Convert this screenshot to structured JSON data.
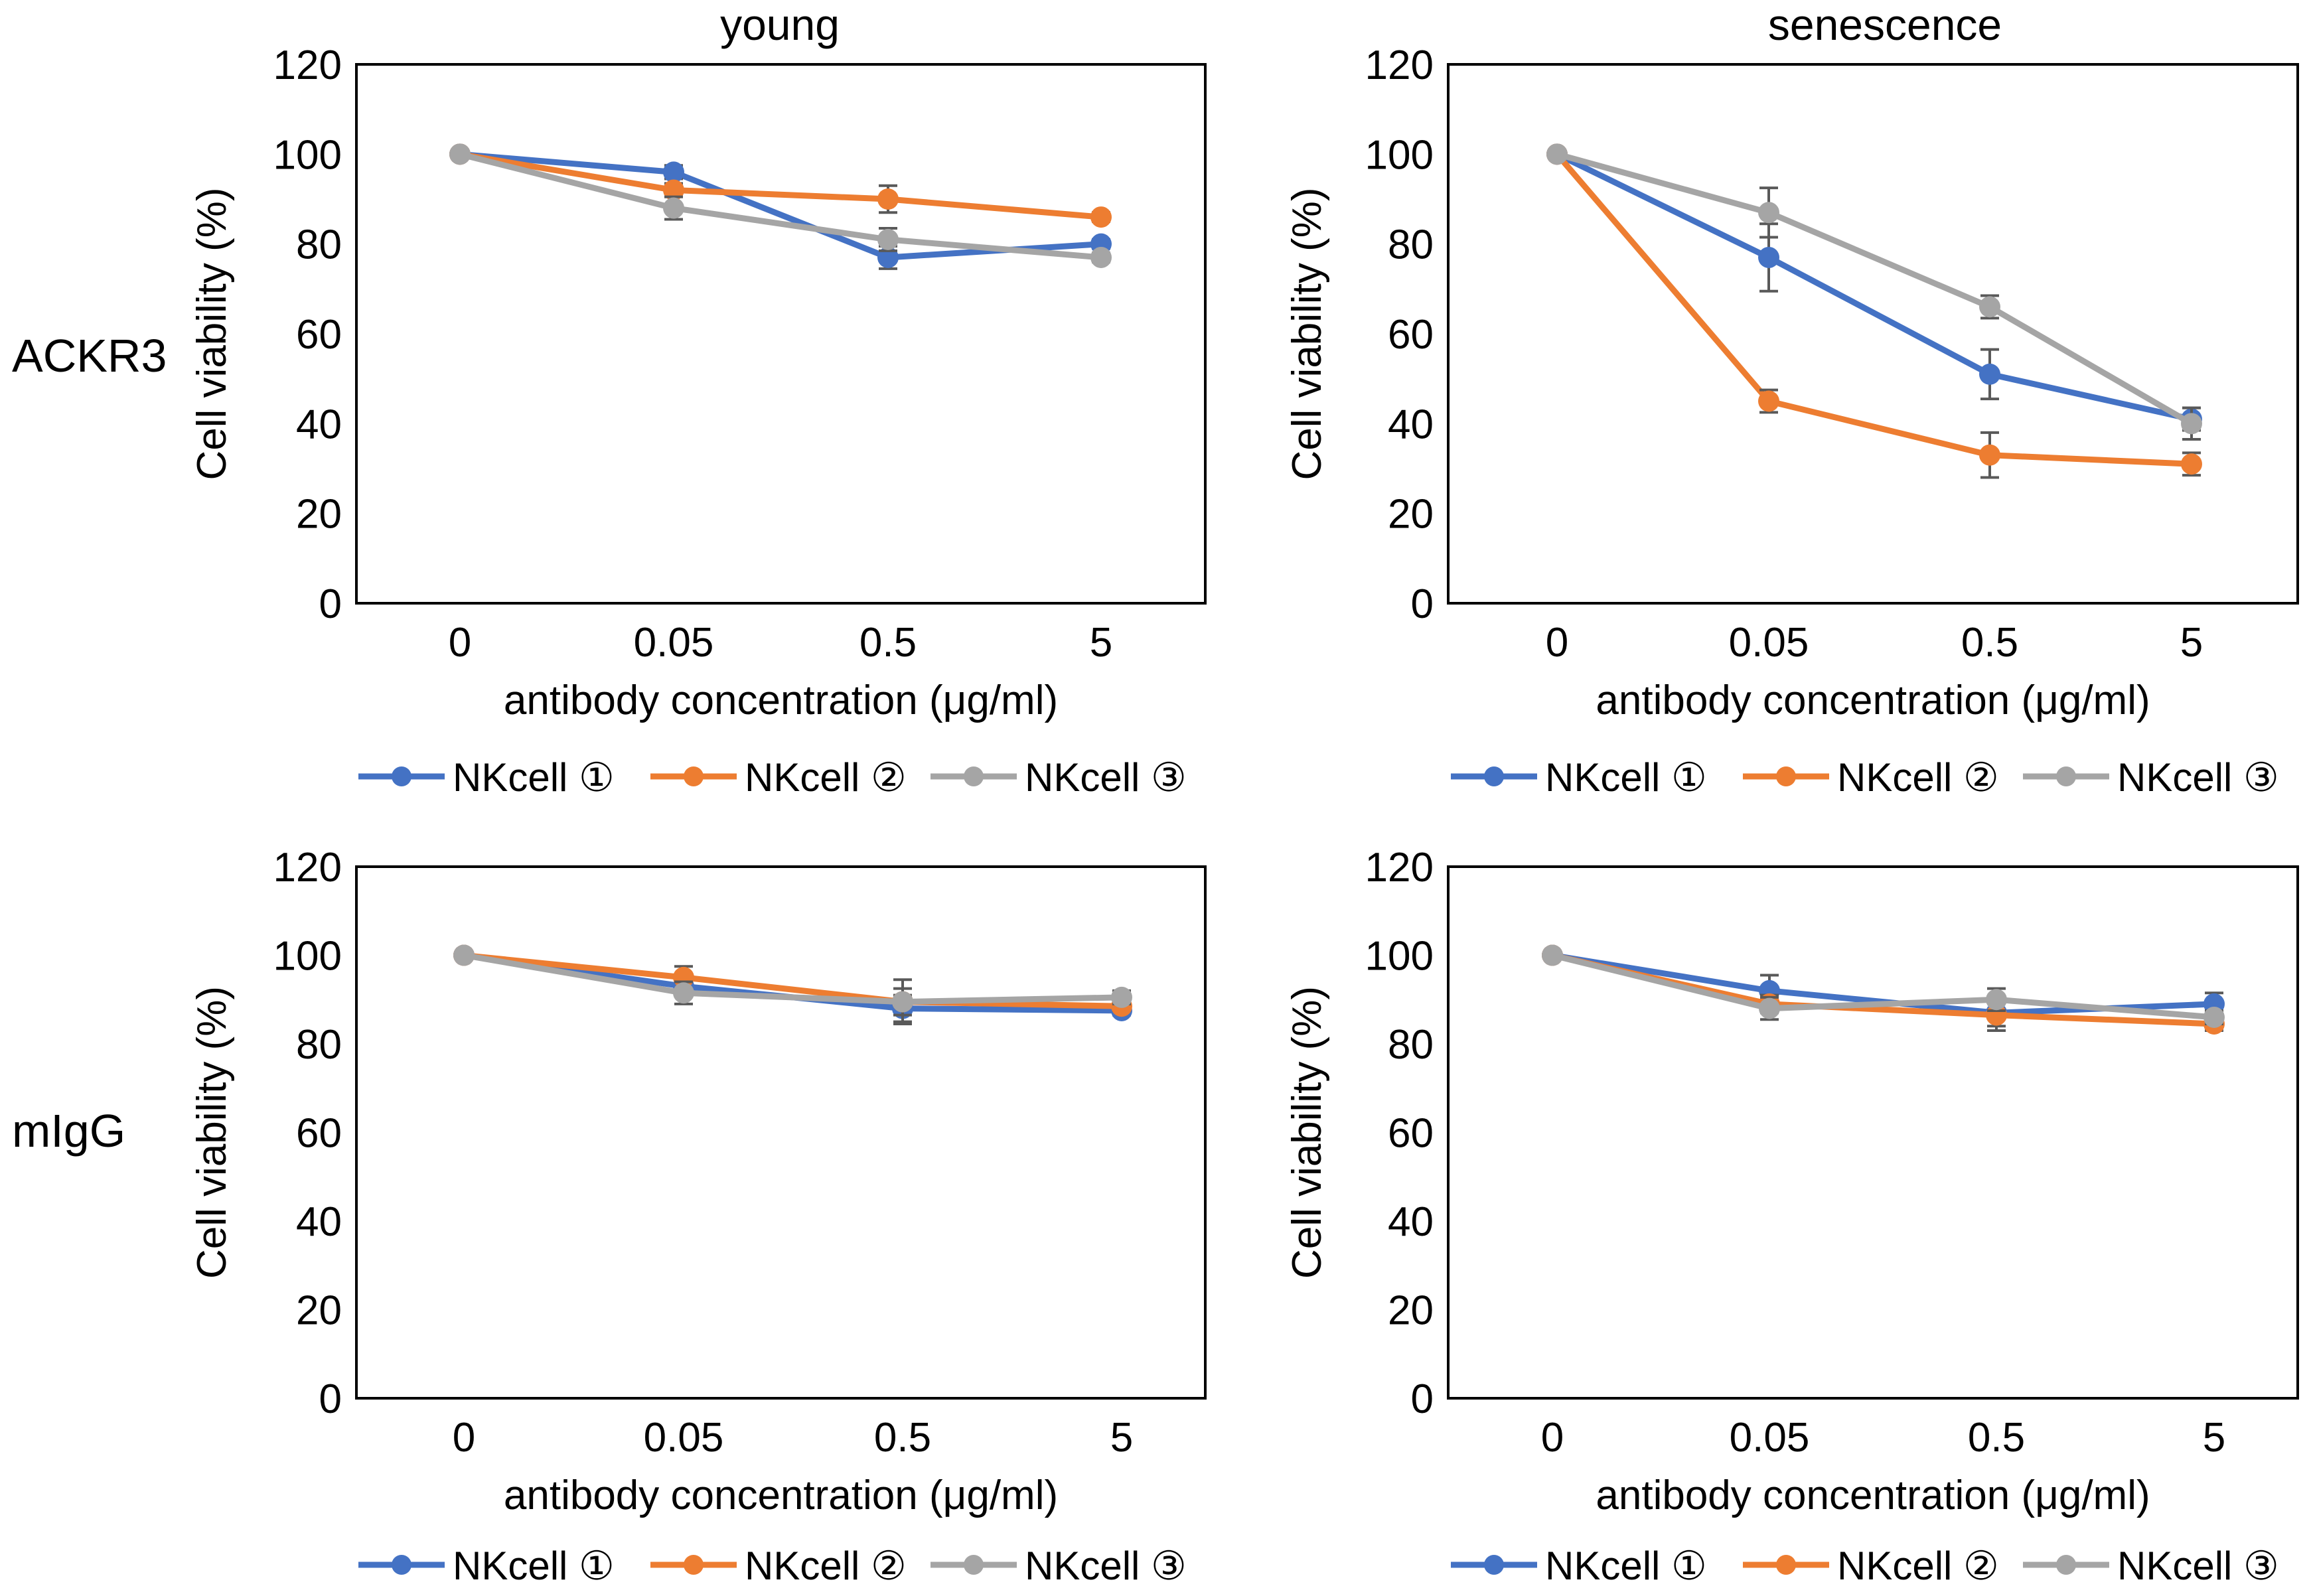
{
  "row_labels": [
    "ACKR3",
    "mIgG"
  ],
  "column_titles": [
    "young",
    "senescence"
  ],
  "colors": {
    "NKcell ①": "#4472C4",
    "NKcell ②": "#ED7D31",
    "NKcell ③": "#A5A5A5"
  },
  "chart_data": [
    {
      "type": "line",
      "title": "young",
      "row_label": "ACKR3",
      "xlabel": "antibody concentration (μg/ml)",
      "ylabel": "Cell viability (%)",
      "categories": [
        "0",
        "0.05",
        "0.5",
        "5"
      ],
      "ylim": [
        0,
        120
      ],
      "yticks": [
        "0",
        "20",
        "40",
        "60",
        "80",
        "100",
        "120"
      ],
      "legend_position": "bottom",
      "grid": false,
      "series": [
        {
          "name": "NKcell ①",
          "color": "#4472C4",
          "values": [
            100,
            96,
            77,
            80
          ],
          "errors": [
            0,
            1.5,
            2.5,
            1
          ]
        },
        {
          "name": "NKcell ②",
          "color": "#ED7D31",
          "values": [
            100,
            92,
            90,
            86
          ],
          "errors": [
            0,
            1.5,
            3,
            1
          ]
        },
        {
          "name": "NKcell ③",
          "color": "#A5A5A5",
          "values": [
            100,
            88,
            81,
            77
          ],
          "errors": [
            0,
            2.5,
            2.5,
            1
          ]
        }
      ]
    },
    {
      "type": "line",
      "title": "senescence",
      "row_label": "ACKR3",
      "xlabel": "antibody concentration (μg/ml)",
      "ylabel": "Cell viability (%)",
      "categories": [
        "0",
        "0.05",
        "0.5",
        "5"
      ],
      "ylim": [
        0,
        120
      ],
      "yticks": [
        "0",
        "20",
        "40",
        "60",
        "80",
        "100",
        "120"
      ],
      "legend_position": "bottom",
      "grid": false,
      "series": [
        {
          "name": "NKcell ①",
          "color": "#4472C4",
          "values": [
            100,
            77,
            51,
            41
          ],
          "errors": [
            0,
            7.5,
            5.5,
            2.5
          ]
        },
        {
          "name": "NKcell ②",
          "color": "#ED7D31",
          "values": [
            100,
            45,
            33,
            31
          ],
          "errors": [
            0,
            2.5,
            5,
            2.5
          ]
        },
        {
          "name": "NKcell ③",
          "color": "#A5A5A5",
          "values": [
            100,
            87,
            66,
            40
          ],
          "errors": [
            0,
            5.5,
            2.5,
            3.5
          ]
        }
      ]
    },
    {
      "type": "line",
      "title": "",
      "row_label": "mIgG",
      "xlabel": "antibody concentration (μg/ml)",
      "ylabel": "Cell viability (%)",
      "categories": [
        "0",
        "0.05",
        "0.5",
        "5"
      ],
      "ylim": [
        0,
        120
      ],
      "yticks": [
        "0",
        "20",
        "40",
        "60",
        "80",
        "100",
        "120"
      ],
      "legend_position": "bottom",
      "grid": false,
      "series": [
        {
          "name": "NKcell ①",
          "color": "#4472C4",
          "values": [
            100,
            93,
            88,
            87.5
          ],
          "errors": [
            0,
            2,
            3,
            1
          ]
        },
        {
          "name": "NKcell ②",
          "color": "#ED7D31",
          "values": [
            100,
            95,
            89.5,
            88.5
          ],
          "errors": [
            0,
            2.5,
            3,
            1
          ]
        },
        {
          "name": "NKcell ③",
          "color": "#A5A5A5",
          "values": [
            100,
            91.5,
            89.5,
            90.5
          ],
          "errors": [
            0,
            2.5,
            5,
            1.5
          ]
        }
      ]
    },
    {
      "type": "line",
      "title": "",
      "row_label": "mIgG",
      "xlabel": "antibody concentration (μg/ml)",
      "ylabel": "Cell viability (%)",
      "categories": [
        "0",
        "0.05",
        "0.5",
        "5"
      ],
      "ylim": [
        0,
        120
      ],
      "yticks": [
        "0",
        "20",
        "40",
        "60",
        "80",
        "100",
        "120"
      ],
      "legend_position": "bottom",
      "grid": false,
      "series": [
        {
          "name": "NKcell ①",
          "color": "#4472C4",
          "values": [
            100,
            92,
            87,
            89
          ],
          "errors": [
            0,
            3.5,
            3,
            2.5
          ]
        },
        {
          "name": "NKcell ②",
          "color": "#ED7D31",
          "values": [
            100,
            89,
            86.5,
            84.5
          ],
          "errors": [
            0,
            2,
            3.5,
            1.5
          ]
        },
        {
          "name": "NKcell ③",
          "color": "#A5A5A5",
          "values": [
            100,
            88,
            90,
            86
          ],
          "errors": [
            0,
            2.5,
            2.5,
            1.5
          ]
        }
      ]
    }
  ]
}
